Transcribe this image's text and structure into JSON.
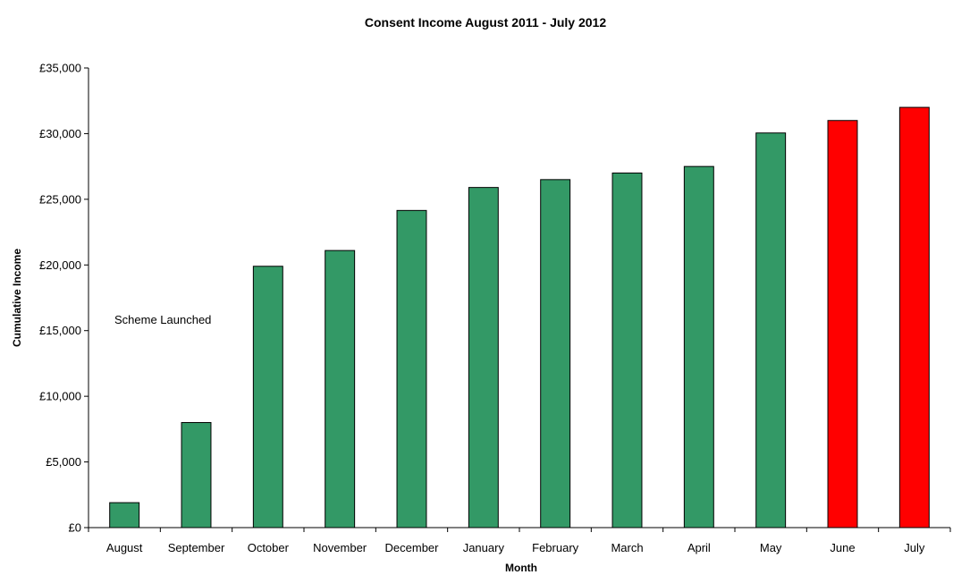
{
  "chart_data": {
    "type": "bar",
    "title": "Consent Income August 2011 - July 2012",
    "xlabel": "Month",
    "ylabel": "Cumulative Income",
    "categories": [
      "August",
      "September",
      "October",
      "November",
      "December",
      "January",
      "February",
      "March",
      "April",
      "May",
      "June",
      "July"
    ],
    "values": [
      1900,
      8000,
      19900,
      21100,
      24150,
      25900,
      26500,
      27000,
      27500,
      30050,
      31000,
      32000
    ],
    "bar_colors": [
      "#339966",
      "#339966",
      "#339966",
      "#339966",
      "#339966",
      "#339966",
      "#339966",
      "#339966",
      "#339966",
      "#339966",
      "#ff0000",
      "#ff0000"
    ],
    "ylim": [
      0,
      35000
    ],
    "yticks": [
      0,
      5000,
      10000,
      15000,
      20000,
      25000,
      30000,
      35000
    ],
    "ytick_labels": [
      "£0",
      "£5,000",
      "£10,000",
      "£15,000",
      "£20,000",
      "£25,000",
      "£30,000",
      "£35,000"
    ],
    "annotation": "Scheme Launched",
    "grid": false,
    "legend": "none"
  }
}
